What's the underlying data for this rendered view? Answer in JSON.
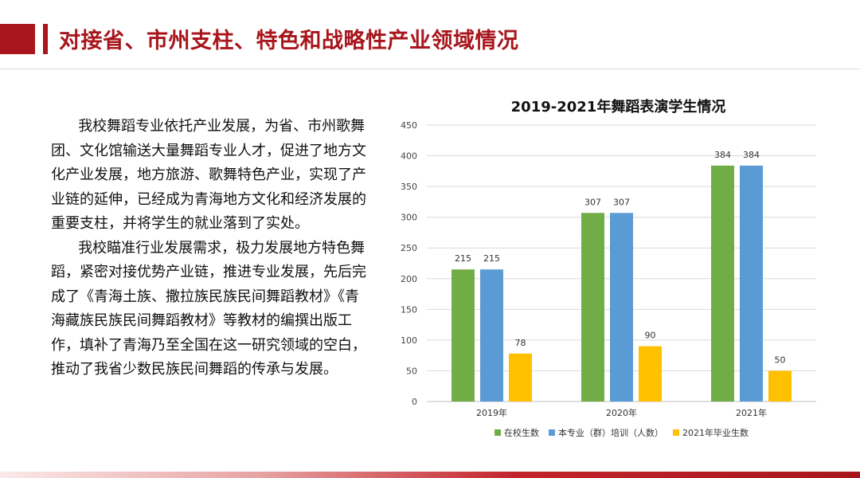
{
  "header": {
    "title": "对接省、市州支柱、特色和战略性产业领域情况"
  },
  "body": {
    "paragraphs": [
      "我校舞蹈专业依托产业发展，为省、市州歌舞团、文化馆输送大量舞蹈专业人才，促进了地方文化产业发展，地方旅游、歌舞特色产业，实现了产业链的延伸，已经成为青海地方文化和经济发展的重要支柱，并将学生的就业落到了实处。",
      "我校瞄准行业发展需求，极力发展地方特色舞蹈，紧密对接优势产业链，推进专业发展，先后完成了《青海土族、撒拉族民族民间舞蹈教材》《青海藏族民族民间舞蹈教材》等教材的编撰出版工作，填补了青海乃至全国在这一研究领域的空白，推动了我省少数民族民间舞蹈的传承与发展。"
    ]
  },
  "colors": {
    "brand": "#a8151c",
    "series": [
      "#70ad47",
      "#5b9bd5",
      "#ffc000"
    ]
  },
  "chart_data": {
    "type": "bar",
    "title": "2019-2021年舞蹈表演学生情况",
    "categories": [
      "2019年",
      "2020年",
      "2021年"
    ],
    "series": [
      {
        "name": "在校生数",
        "values": [
          215,
          307,
          384
        ]
      },
      {
        "name": "本专业（群）培训（人数）",
        "values": [
          215,
          307,
          384
        ]
      },
      {
        "name": "2021年毕业生数",
        "values": [
          78,
          90,
          50
        ]
      }
    ],
    "ylim": [
      0,
      450
    ],
    "yticks": [
      0,
      50,
      100,
      150,
      200,
      250,
      300,
      350,
      400,
      450
    ],
    "grid": true,
    "legend": "bottom",
    "data_labels": true
  }
}
